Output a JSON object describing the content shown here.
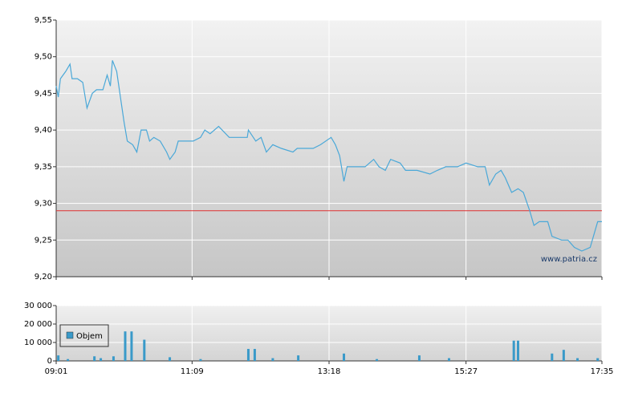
{
  "chart_data": [
    {
      "type": "line",
      "color": "#4aa8d8",
      "annotation": "www.patria.cz",
      "reference_line": 9.29,
      "reference_color": "#e03030",
      "x": [
        "09:01",
        "09:03",
        "09:05",
        "09:10",
        "09:14",
        "09:16",
        "09:21",
        "09:26",
        "09:30",
        "09:35",
        "09:39",
        "09:45",
        "09:49",
        "09:52",
        "09:54",
        "09:58",
        "10:02",
        "10:05",
        "10:08",
        "10:13",
        "10:17",
        "10:21",
        "10:26",
        "10:29",
        "10:33",
        "10:39",
        "10:45",
        "10:48",
        "10:53",
        "10:56",
        "11:10",
        "11:17",
        "11:21",
        "11:26",
        "11:34",
        "11:44",
        "12:01",
        "12:02",
        "12:09",
        "12:14",
        "12:19",
        "12:25",
        "12:33",
        "12:44",
        "12:48",
        "13:03",
        "13:10",
        "13:20",
        "13:24",
        "13:28",
        "13:32",
        "13:35",
        "13:52",
        "14:00",
        "14:05",
        "14:11",
        "14:16",
        "14:25",
        "14:30",
        "14:41",
        "14:53",
        "15:00",
        "15:08",
        "15:19",
        "15:27",
        "15:38",
        "15:45",
        "15:49",
        "15:55",
        "16:00",
        "16:04",
        "16:10",
        "16:16",
        "16:21",
        "16:27",
        "16:31",
        "16:36",
        "16:44",
        "16:48",
        "16:57",
        "17:03",
        "17:09",
        "17:16",
        "17:24",
        "17:27",
        "17:31",
        "17:35"
      ],
      "values": [
        9.46,
        9.445,
        9.47,
        9.48,
        9.49,
        9.47,
        9.47,
        9.465,
        9.43,
        9.45,
        9.455,
        9.455,
        9.475,
        9.46,
        9.495,
        9.48,
        9.44,
        9.41,
        9.385,
        9.38,
        9.37,
        9.4,
        9.4,
        9.385,
        9.39,
        9.385,
        9.37,
        9.36,
        9.37,
        9.385,
        9.385,
        9.39,
        9.4,
        9.395,
        9.405,
        9.39,
        9.39,
        9.4,
        9.385,
        9.39,
        9.37,
        9.38,
        9.375,
        9.37,
        9.375,
        9.375,
        9.38,
        9.39,
        9.38,
        9.365,
        9.33,
        9.35,
        9.35,
        9.36,
        9.35,
        9.345,
        9.36,
        9.355,
        9.345,
        9.345,
        9.34,
        9.345,
        9.35,
        9.35,
        9.355,
        9.35,
        9.35,
        9.325,
        9.34,
        9.345,
        9.335,
        9.315,
        9.32,
        9.315,
        9.29,
        9.27,
        9.275,
        9.275,
        9.255,
        9.25,
        9.25,
        9.24,
        9.235,
        9.24,
        9.255,
        9.275,
        9.275
      ],
      "xlim": [
        "09:01",
        "17:35"
      ],
      "ylim": [
        9.2,
        9.55
      ],
      "yticks": [
        {
          "value": 9.2,
          "label": "9,20"
        },
        {
          "value": 9.25,
          "label": "9,25"
        },
        {
          "value": 9.3,
          "label": "9,30"
        },
        {
          "value": 9.35,
          "label": "9,35"
        },
        {
          "value": 9.4,
          "label": "9,40"
        },
        {
          "value": 9.45,
          "label": "9,45"
        },
        {
          "value": 9.5,
          "label": "9,50"
        },
        {
          "value": 9.55,
          "label": "9,55"
        }
      ],
      "grid": true
    },
    {
      "type": "bar",
      "x": [
        "09:03",
        "09:12",
        "09:37",
        "09:43",
        "09:55",
        "10:06",
        "10:12",
        "10:24",
        "10:48",
        "11:17",
        "12:02",
        "12:08",
        "12:25",
        "12:49",
        "13:32",
        "14:03",
        "14:43",
        "15:11",
        "16:12",
        "16:16",
        "16:48",
        "16:59",
        "17:12",
        "17:31"
      ],
      "series": [
        {
          "name": "Objem",
          "color": "#3a9ac9",
          "values": [
            3000,
            1000,
            2500,
            1500,
            2500,
            16000,
            16000,
            11500,
            2000,
            1000,
            6500,
            6500,
            1500,
            3000,
            4000,
            1000,
            3000,
            1500,
            11000,
            11000,
            4000,
            6000,
            1500,
            1500
          ]
        }
      ],
      "xlim": [
        "09:01",
        "17:35"
      ],
      "xticks": [
        "09:01",
        "11:09",
        "13:18",
        "15:27",
        "17:35"
      ],
      "ylim": [
        0,
        30000
      ],
      "yticks": [
        0,
        {
          "value": 10000,
          "label": "10 000"
        },
        {
          "value": 20000,
          "label": "20 000"
        },
        {
          "value": 30000,
          "label": "30 000"
        }
      ],
      "grid": true
    }
  ]
}
